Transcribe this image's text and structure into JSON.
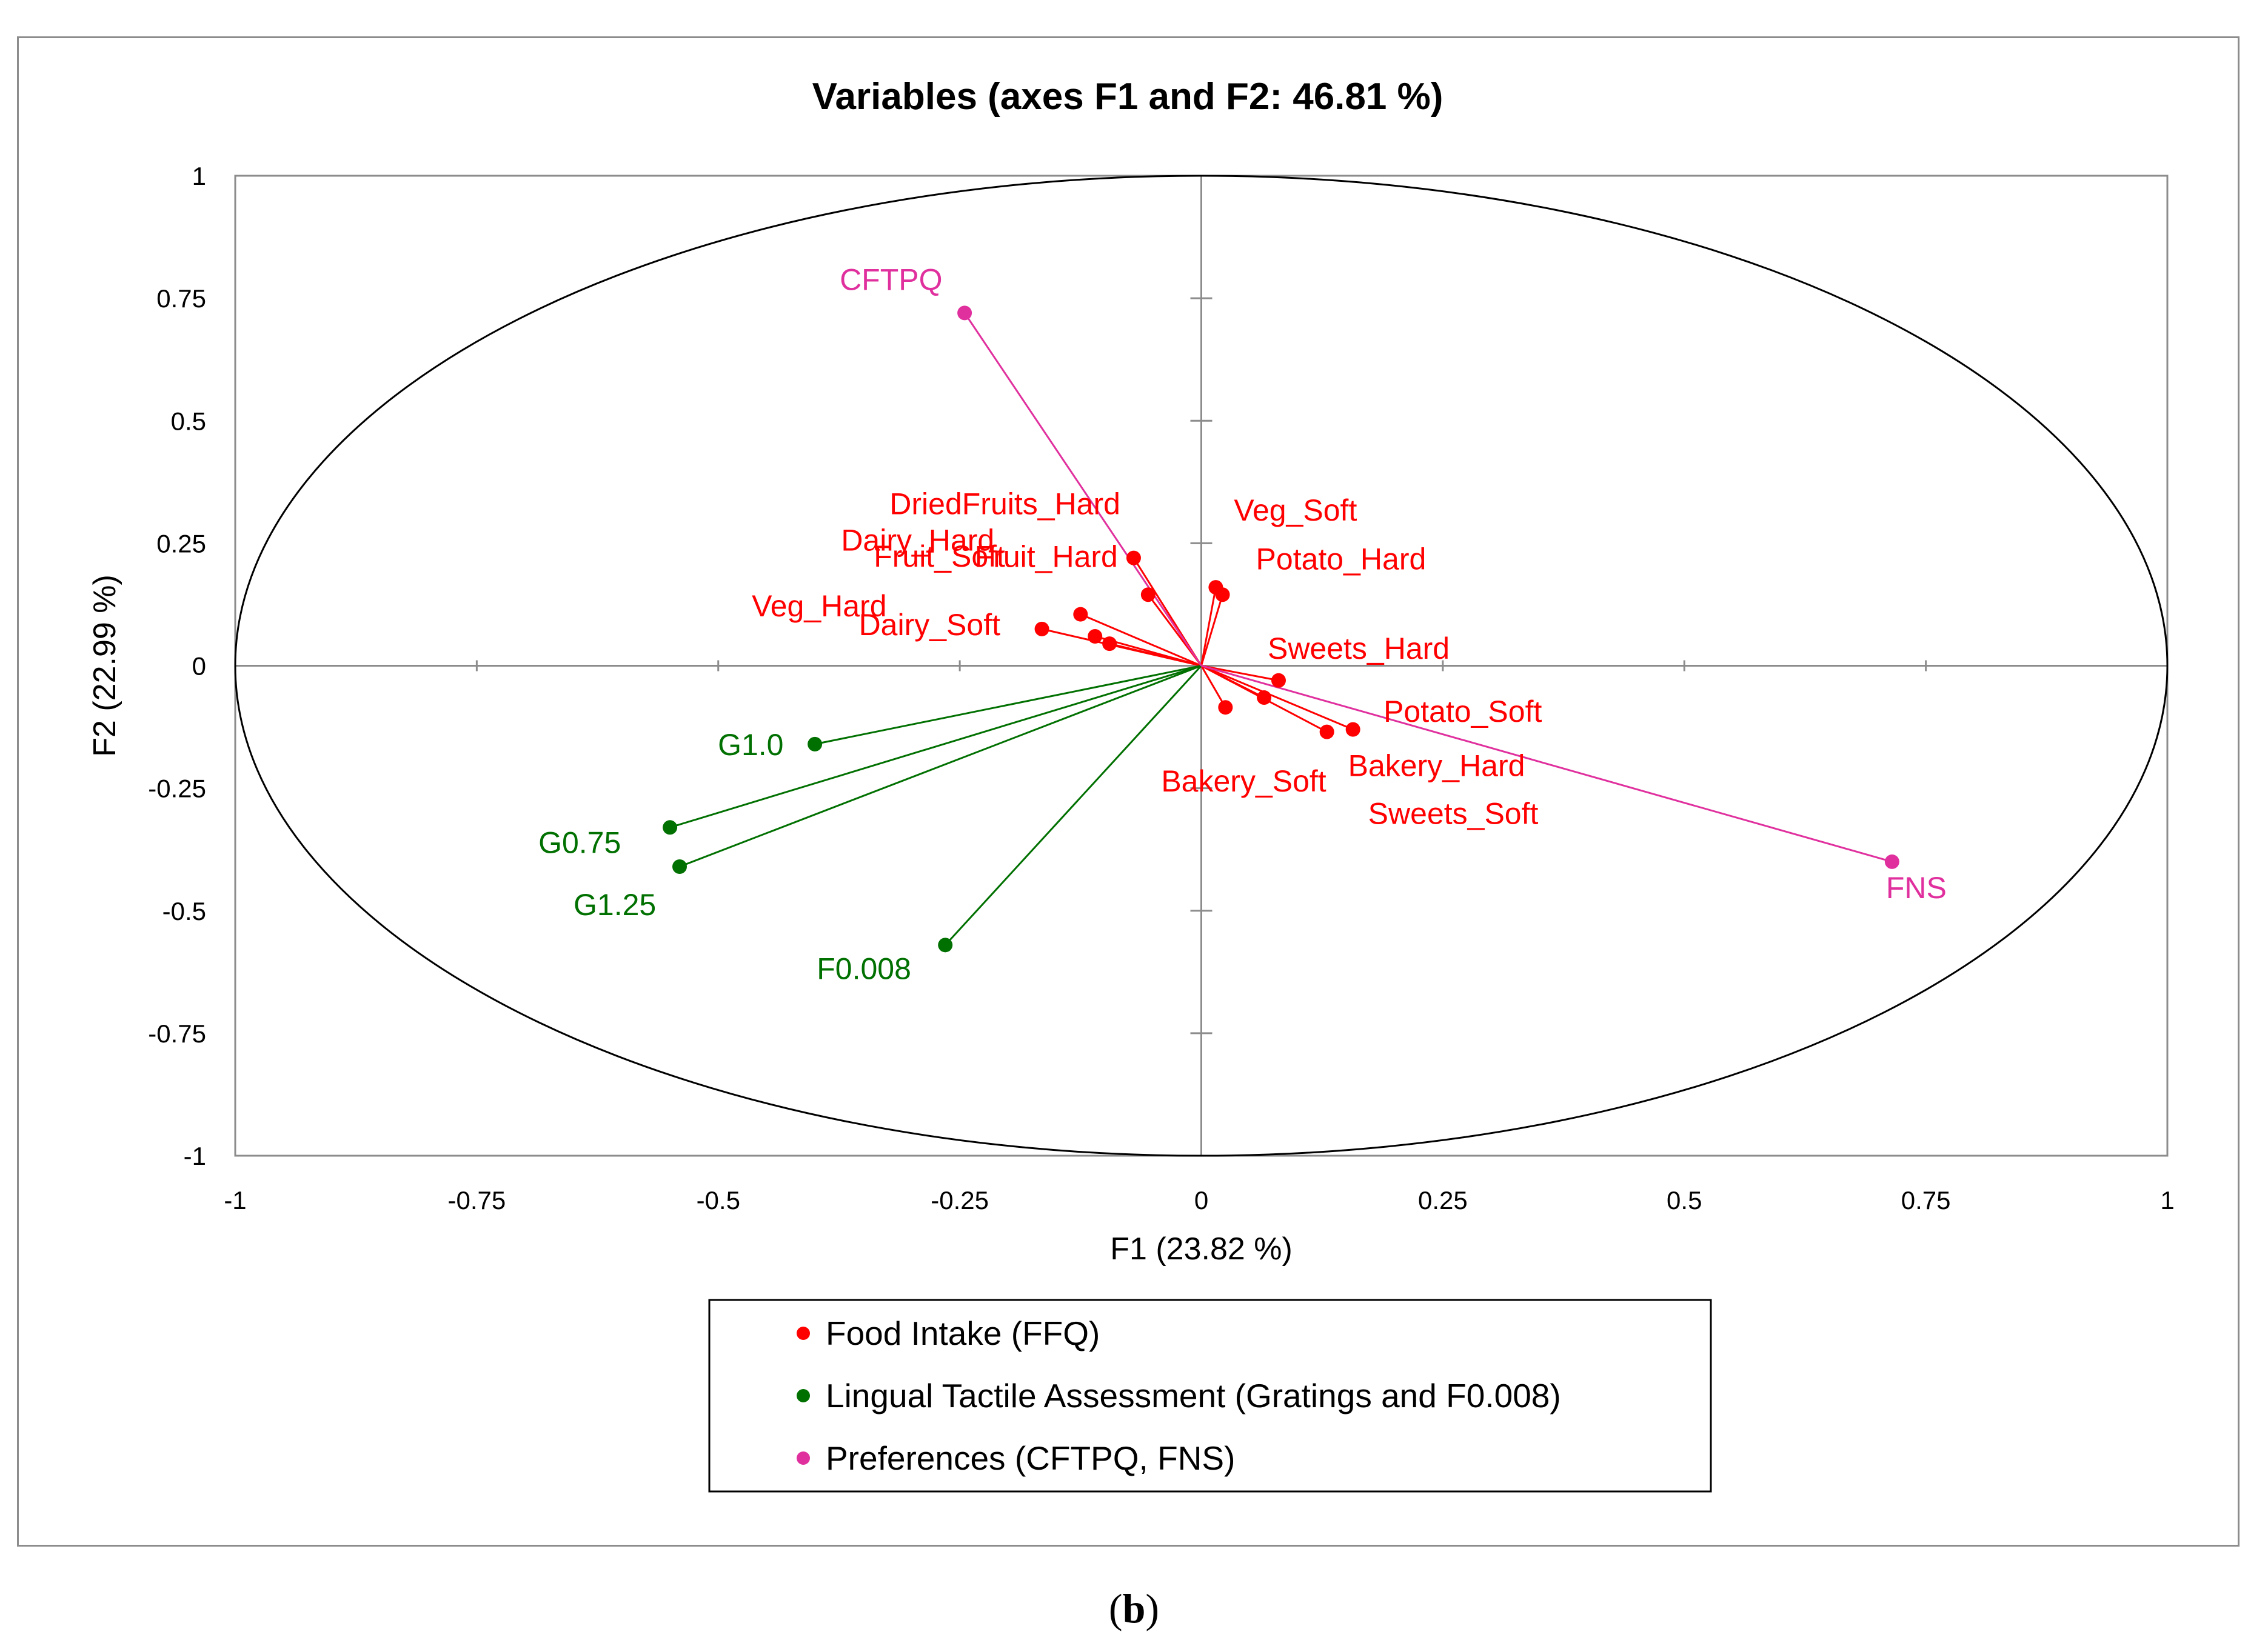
{
  "chart_data": {
    "type": "scatter",
    "title": "Variables (axes F1 and F2: 46.81 %)",
    "xlabel": "F1 (23.82 %)",
    "ylabel": "F2 (22.99 %)",
    "xlim": [
      -1,
      1
    ],
    "ylim": [
      -1,
      1
    ],
    "xticks": [
      "-1",
      "-0.75",
      "-0.5",
      "-0.25",
      "0",
      "0.25",
      "0.5",
      "0.75",
      "1"
    ],
    "yticks": [
      "1",
      "0.75",
      "0.5",
      "0.25",
      "0",
      "-0.25",
      "-0.5",
      "-0.75",
      "-1"
    ],
    "xtick_values": [
      -1,
      -0.75,
      -0.5,
      -0.25,
      0,
      0.25,
      0.5,
      0.75,
      1
    ],
    "ytick_values": [
      1,
      0.75,
      0.5,
      0.25,
      0,
      -0.25,
      -0.5,
      -0.75,
      -1
    ],
    "correlation_circle": true,
    "series": [
      {
        "name": "Food Intake (FFQ)",
        "color": "#ff0000",
        "points": [
          {
            "label": "DriedFruits_Hard",
            "x": -0.07,
            "y": 0.22
          },
          {
            "label": "Fruit_Hard",
            "x": -0.055,
            "y": 0.145
          },
          {
            "label": "Dairy_Hard",
            "x": -0.125,
            "y": 0.105
          },
          {
            "label": "Fruit_Soft",
            "x": -0.11,
            "y": 0.06
          },
          {
            "label": "Veg_Hard",
            "x": -0.095,
            "y": 0.045
          },
          {
            "label": "Dairy_Soft",
            "x": -0.165,
            "y": 0.075
          },
          {
            "label": "Veg_Soft",
            "x": 0.015,
            "y": 0.16
          },
          {
            "label": "Potato_Hard",
            "x": 0.022,
            "y": 0.145
          },
          {
            "label": "Sweets_Hard",
            "x": 0.08,
            "y": -0.03
          },
          {
            "label": "Potato_Soft",
            "x": 0.065,
            "y": -0.065
          },
          {
            "label": "Bakery_Soft",
            "x": 0.025,
            "y": -0.085
          },
          {
            "label": "Bakery_Hard",
            "x": 0.13,
            "y": -0.135
          },
          {
            "label": "Sweets_Soft",
            "x": 0.157,
            "y": -0.13
          }
        ]
      },
      {
        "name": "Lingual Tactile Assessment (Gratings and F0.008)",
        "color": "#007000",
        "points": [
          {
            "label": "G1.0",
            "x": -0.4,
            "y": -0.16
          },
          {
            "label": "G0.75",
            "x": -0.55,
            "y": -0.33
          },
          {
            "label": "G1.25",
            "x": -0.54,
            "y": -0.41
          },
          {
            "label": "F0.008",
            "x": -0.265,
            "y": -0.57
          }
        ]
      },
      {
        "name": "Preferences (CFTPQ, FNS)",
        "color": "#e0309e",
        "points": [
          {
            "label": "CFTPQ",
            "x": -0.245,
            "y": 0.72
          },
          {
            "label": "FNS",
            "x": 0.715,
            "y": -0.4
          }
        ]
      }
    ],
    "legend": {
      "items": [
        "Food Intake (FFQ)",
        "Lingual Tactile Assessment (Gratings and F0.008)",
        "Preferences (CFTPQ, FNS)"
      ],
      "position": "bottom-center"
    }
  },
  "caption": {
    "open": "(",
    "letter": "b",
    "close": ")"
  }
}
